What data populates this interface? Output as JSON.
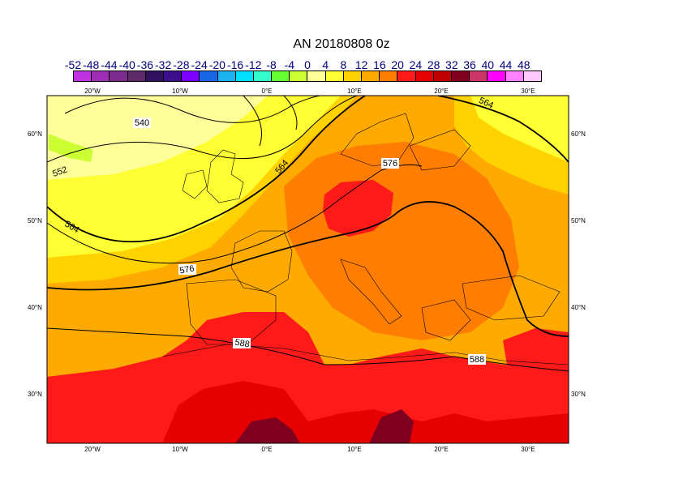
{
  "title": "AN  20180808 0z",
  "colorbar": {
    "tick_labels": [
      "-52",
      "-48",
      "-44",
      "-40",
      "-36",
      "-32",
      "-28",
      "-24",
      "-20",
      "-16",
      "-12",
      "-8",
      "-4",
      "0",
      "4",
      "8",
      "12",
      "16",
      "20",
      "24",
      "28",
      "32",
      "36",
      "40",
      "44",
      "48"
    ],
    "colors": [
      "#c133e0",
      "#9e2fb4",
      "#7b2c8c",
      "#5e2a68",
      "#321260",
      "#3d0f8c",
      "#7d00ff",
      "#1a64e6",
      "#1ab2f0",
      "#00e0ff",
      "#33ffcc",
      "#66ff33",
      "#ccff33",
      "#ffff99",
      "#ffff33",
      "#ffd200",
      "#ffaa00",
      "#ff7d00",
      "#ff1a1a",
      "#e60000",
      "#c00000",
      "#800020",
      "#cc3366",
      "#ff00ff",
      "#ff80ff",
      "#ffc8ff"
    ]
  },
  "map": {
    "longitude_labels": [
      "20°W",
      "10°W",
      "0°E",
      "10°E",
      "20°E",
      "30°E"
    ],
    "latitude_labels": [
      "60°N",
      "50°N",
      "40°N",
      "30°N"
    ],
    "contour_labels": [
      "540",
      "552",
      "564",
      "564",
      "576",
      "576",
      "564",
      "588",
      "588"
    ]
  },
  "colors": {
    "frame": "#000000",
    "contour": "#000000"
  }
}
